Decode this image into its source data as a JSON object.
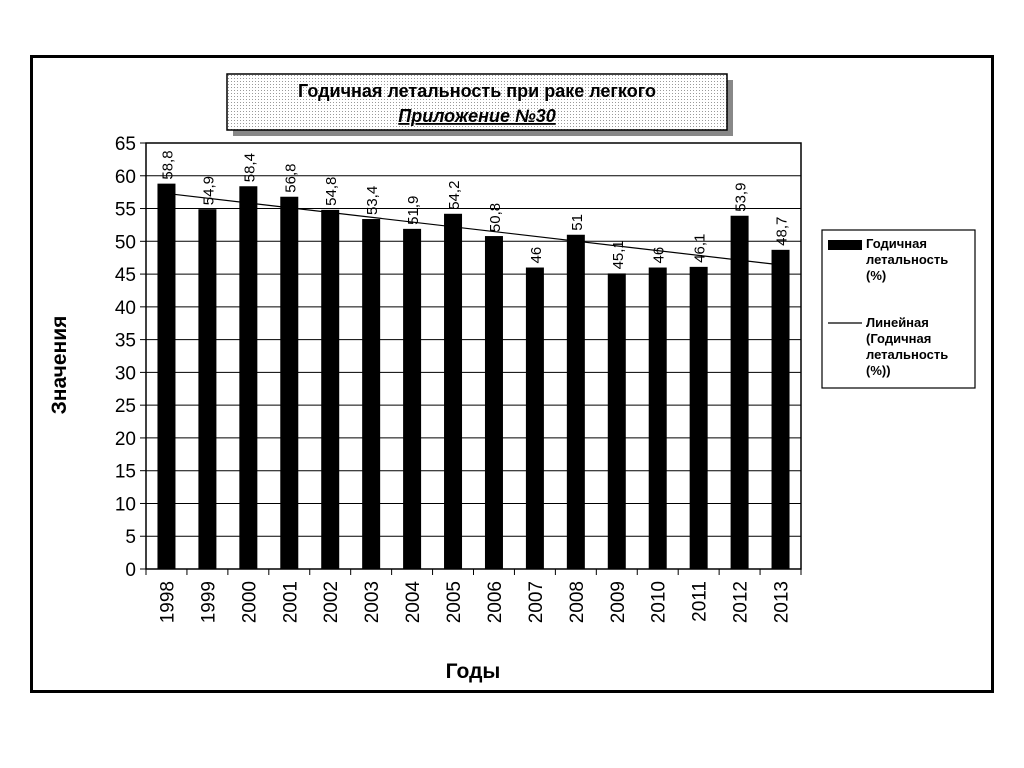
{
  "chart_data": {
    "type": "bar",
    "title": "Годичная летальность  при раке легкого",
    "subtitle": "Приложение №30",
    "xlabel": "Годы",
    "ylabel": "Значения",
    "categories": [
      "1998",
      "1999",
      "2000",
      "2001",
      "2002",
      "2003",
      "2004",
      "2005",
      "2006",
      "2007",
      "2008",
      "2009",
      "2010",
      "2011",
      "2012",
      "2013"
    ],
    "series": [
      {
        "name": "Годичная летальность (%)",
        "values": [
          58.8,
          54.9,
          58.4,
          56.8,
          54.8,
          53.4,
          51.9,
          54.2,
          50.8,
          46,
          51,
          45.1,
          46,
          46.1,
          53.9,
          48.7
        ],
        "labels": [
          "58,8",
          "54,9",
          "58,4",
          "56,8",
          "54,8",
          "53,4",
          "51,9",
          "54,2",
          "50,8",
          "46",
          "51",
          "45,1",
          "46",
          "46,1",
          "53,9",
          "48,7"
        ],
        "color": "#000000"
      }
    ],
    "trendline": {
      "name": "Линейная (Годичная летальность (%))",
      "start": 57.3,
      "end": 46.4
    },
    "ylim": [
      0,
      65
    ],
    "yticks": [
      0,
      5,
      10,
      15,
      20,
      25,
      30,
      35,
      40,
      45,
      50,
      55,
      60,
      65
    ],
    "grid": true,
    "legend": {
      "position": "right",
      "items": [
        {
          "kind": "bar",
          "lines": [
            "Годичная",
            "летальность",
            "(%)"
          ]
        },
        {
          "kind": "line",
          "lines": [
            "Линейная",
            "(Годичная",
            "летальность",
            "(%))"
          ]
        }
      ]
    }
  }
}
